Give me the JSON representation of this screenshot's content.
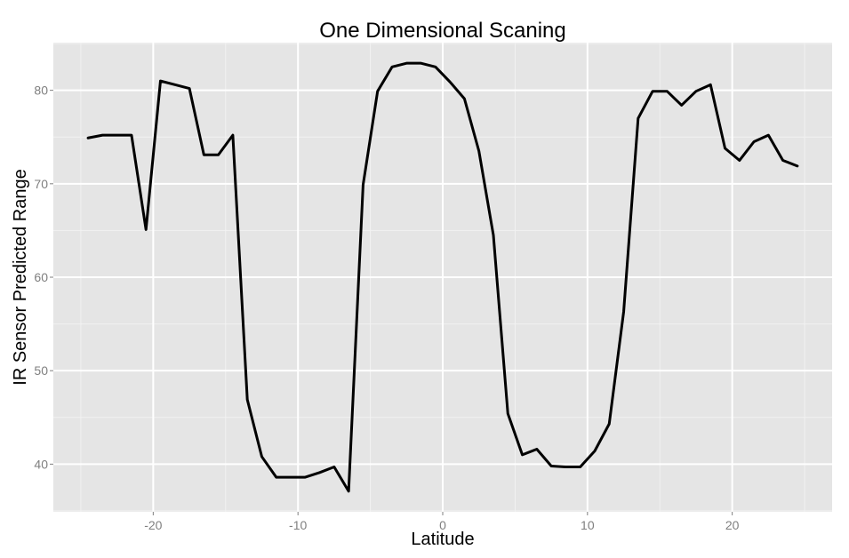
{
  "chart_data": {
    "type": "line",
    "title": "One Dimensional Scaning",
    "xlabel": "Latitude",
    "ylabel": "IR Sensor Predicted Range",
    "xlim": [
      -26.9,
      26.9
    ],
    "ylim": [
      34.9,
      85.1
    ],
    "xticks": [
      -20,
      -10,
      0,
      10,
      20
    ],
    "yticks": [
      40,
      50,
      60,
      70,
      80
    ],
    "grid": true,
    "legend": "none",
    "colors": {
      "panel": "#e5e5e5",
      "grid_major": "#ffffff",
      "grid_minor": "#f2f2f2",
      "line": "#000000",
      "tick_label": "#7f7f7f"
    },
    "series": [
      {
        "x": [
          -24.5,
          -23.5,
          -22.5,
          -21.5,
          -20.5,
          -19.5,
          -18.5,
          -17.5,
          -16.5,
          -15.5,
          -14.5,
          -13.5,
          -12.5,
          -11.5,
          -10.5,
          -9.5,
          -8.5,
          -7.5,
          -6.5,
          -5.5,
          -4.5,
          -3.5,
          -2.5,
          -1.5,
          -0.5,
          0.5,
          1.5,
          2.5,
          3.5,
          4.5,
          5.5,
          6.5,
          7.5,
          8.5,
          9.5,
          10.5,
          11.5,
          12.5,
          13.5,
          14.5,
          15.5,
          16.5,
          17.5,
          18.5,
          19.5,
          20.5,
          21.5,
          22.5,
          23.5,
          24.5
        ],
        "y": [
          74.9,
          75.2,
          75.2,
          75.2,
          65.1,
          81.0,
          80.6,
          80.2,
          73.1,
          73.1,
          75.2,
          46.9,
          40.8,
          38.6,
          38.6,
          38.6,
          39.1,
          39.7,
          37.1,
          69.9,
          79.9,
          82.5,
          82.9,
          82.9,
          82.5,
          80.9,
          79.1,
          73.5,
          64.5,
          45.4,
          41.0,
          41.6,
          39.8,
          39.7,
          39.7,
          41.4,
          44.3,
          56.3,
          77.0,
          79.9,
          79.9,
          78.4,
          79.9,
          80.6,
          73.8,
          72.5,
          74.5,
          75.2,
          72.5,
          71.9
        ]
      }
    ]
  }
}
